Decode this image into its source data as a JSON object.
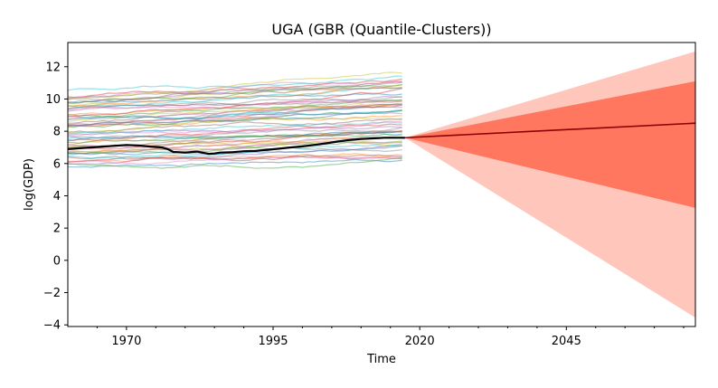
{
  "chart_data": {
    "type": "line",
    "title": "UGA (GBR (Quantile-Clusters))",
    "xlabel": "Time",
    "ylabel": "log(GDP)",
    "xlim": [
      1960,
      2067
    ],
    "ylim": [
      -4.1,
      13.5
    ],
    "x_ticks": [
      1970,
      1995,
      2020,
      2045
    ],
    "y_ticks": [
      -4,
      -2,
      0,
      2,
      4,
      6,
      8,
      10,
      12
    ],
    "grid": false,
    "legend": "none",
    "history_range": [
      1960,
      2017
    ],
    "comparison_series_count": 60,
    "comparison_band": {
      "low_start": 5.8,
      "high_start": 10.3,
      "low_end": 6.5,
      "high_end": 11.3
    },
    "main_series": {
      "color": "#000000",
      "x": [
        1960,
        1962,
        1964,
        1966,
        1968,
        1970,
        1972,
        1974,
        1976,
        1977,
        1978,
        1980,
        1982,
        1984,
        1985,
        1986,
        1988,
        1990,
        1992,
        1994,
        1996,
        1998,
        2000,
        2002,
        2004,
        2006,
        2008,
        2010,
        2012,
        2014,
        2016,
        2017
      ],
      "y": [
        6.9,
        6.95,
        7.0,
        7.05,
        7.1,
        7.15,
        7.12,
        7.05,
        7.0,
        6.9,
        6.72,
        6.68,
        6.74,
        6.6,
        6.62,
        6.68,
        6.7,
        6.76,
        6.78,
        6.85,
        6.92,
        7.0,
        7.06,
        7.15,
        7.25,
        7.36,
        7.46,
        7.52,
        7.56,
        7.6,
        7.6,
        7.6
      ]
    },
    "forecast": {
      "x_start": 2017.5,
      "x_end": 2067,
      "median": [
        7.6,
        8.5
      ],
      "inner_band": {
        "lower_end": 3.25,
        "upper_end": 11.1,
        "color": "#ff6347"
      },
      "outer_band": {
        "lower_end": -3.55,
        "upper_end": 12.95,
        "color": "#ffbcb0"
      },
      "median_color": "#8b0000"
    },
    "palette": [
      "#1f77b4",
      "#ff7f0e",
      "#2ca02c",
      "#d62728",
      "#9467bd",
      "#8c564b",
      "#e377c2",
      "#7f7f7f",
      "#bcbd22",
      "#17becf"
    ]
  }
}
